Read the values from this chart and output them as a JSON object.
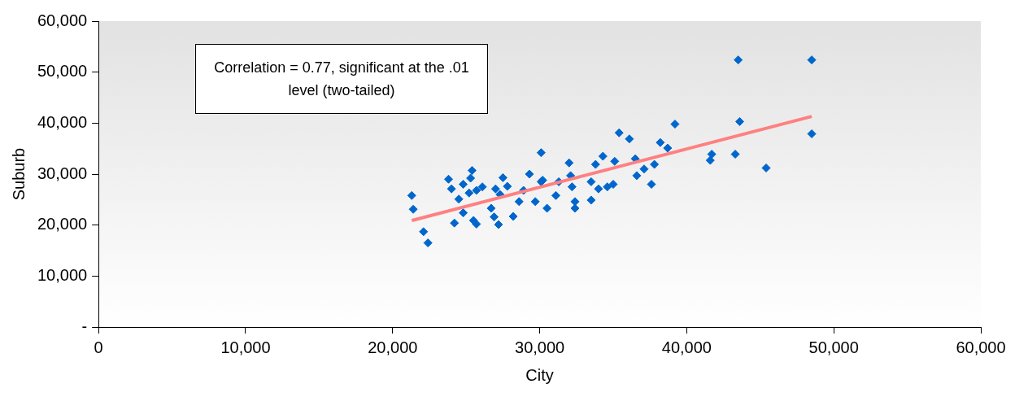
{
  "chart_data": {
    "type": "scatter",
    "xlabel": "City",
    "ylabel": "Suburb",
    "marker": "diamond",
    "grid": false,
    "legend": false,
    "annotations": [
      "Correlation = 0.77, significant at the .01 level (two-tailed)"
    ],
    "xlim": [
      0,
      60000
    ],
    "ylim": [
      0,
      60000
    ],
    "xticks": [
      {
        "value": 0,
        "label": "0"
      },
      {
        "value": 10000,
        "label": "10,000"
      },
      {
        "value": 20000,
        "label": "20,000"
      },
      {
        "value": 30000,
        "label": "30,000"
      },
      {
        "value": 40000,
        "label": "40,000"
      },
      {
        "value": 50000,
        "label": "50,000"
      },
      {
        "value": 60000,
        "label": "60,000"
      }
    ],
    "yticks": [
      {
        "value": 0,
        "label": "-"
      },
      {
        "value": 10000,
        "label": "10,000"
      },
      {
        "value": 20000,
        "label": "20,000"
      },
      {
        "value": 30000,
        "label": "30,000"
      },
      {
        "value": 40000,
        "label": "40,000"
      },
      {
        "value": 50000,
        "label": "50,000"
      },
      {
        "value": 60000,
        "label": "60,000"
      }
    ],
    "series": [
      {
        "type": "scatter",
        "color": "#0066cc",
        "x": [
          21300,
          21400,
          22100,
          22400,
          23800,
          25400,
          25300,
          24000,
          24500,
          24200,
          24800,
          25500,
          25200,
          25700,
          26100,
          27000,
          26700,
          27200,
          27500,
          27800,
          28200,
          29300,
          28900,
          29700,
          30100,
          30100,
          30200,
          30500,
          31300,
          32000,
          32100,
          32200,
          31100,
          32400,
          32400,
          33500,
          33500,
          33800,
          34300,
          34000,
          34600,
          35000,
          35100,
          35400,
          36100,
          36500,
          36600,
          37100,
          37600,
          37800,
          38200,
          38700,
          39200,
          43500,
          48500,
          43600,
          48500,
          41700,
          43300,
          45400,
          41600,
          25700,
          26900,
          27300,
          24800,
          28600
        ],
        "values": [
          25800,
          23100,
          18700,
          16500,
          29000,
          30700,
          29200,
          27100,
          25100,
          20400,
          22400,
          20900,
          26300,
          26800,
          27500,
          27100,
          23300,
          20100,
          29300,
          27600,
          21700,
          30000,
          26800,
          24600,
          28500,
          34200,
          28800,
          23300,
          28500,
          32200,
          29700,
          27500,
          25800,
          24600,
          23300,
          24900,
          28500,
          31900,
          33500,
          27100,
          27500,
          28000,
          32500,
          38100,
          36900,
          33000,
          29700,
          31000,
          28000,
          31900,
          36200,
          35100,
          39800,
          52400,
          52400,
          40300,
          37900,
          33900,
          33900,
          31200,
          32700,
          20200,
          21600,
          26000,
          28000,
          24600
        ]
      },
      {
        "type": "line",
        "color": "#ff8080",
        "line_style": "solid",
        "marker": "none",
        "x": [
          21300,
          48500
        ],
        "values": [
          20900,
          41300
        ]
      }
    ]
  }
}
